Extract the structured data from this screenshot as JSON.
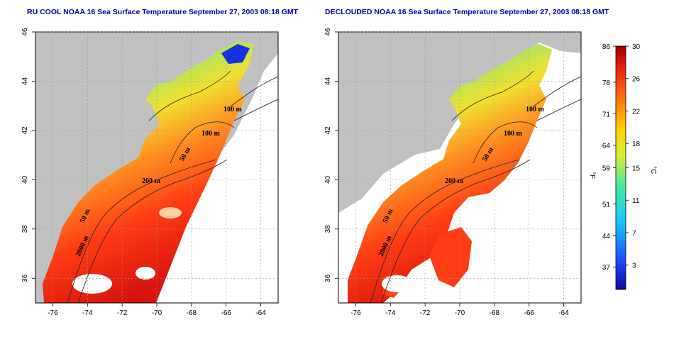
{
  "titles": {
    "left": "RU COOL NOAA 16 Sea Surface Temperature September 27, 2003 08:18 GMT",
    "right": "DECLOUDED NOAA 16 Sea Surface Temperature September 27, 2003 08:18 GMT"
  },
  "axes": {
    "lon_ticks": [
      "-76",
      "-74",
      "-72",
      "-70",
      "-68",
      "-66",
      "-64"
    ],
    "lat_ticks": [
      "36",
      "38",
      "40",
      "42",
      "44",
      "46"
    ]
  },
  "contour_labels": [
    "100 m",
    "100 m",
    "50 m",
    "200 m",
    "50 m",
    "2000 m"
  ],
  "colorbar": {
    "fahrenheit_label": "°F",
    "celsius_label": "°C",
    "fahrenheit_ticks": [
      "86",
      "78",
      "71",
      "64",
      "59",
      "51",
      "44",
      "37"
    ],
    "celsius_ticks": [
      "30",
      "26",
      "22",
      "18",
      "15",
      "11",
      "7",
      "3"
    ]
  },
  "colors": {
    "land": "#c0c0c0",
    "cloud": "#ffffff",
    "title": "#0000aa"
  }
}
